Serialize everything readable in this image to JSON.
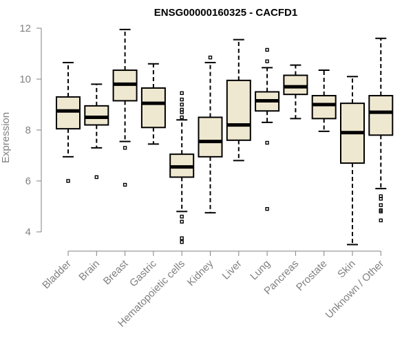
{
  "chart_data": {
    "type": "boxplot",
    "title": "ENSG00000160325 - CACFD1",
    "xlabel": "",
    "ylabel": "Expression",
    "ylim": [
      3.3,
      12.2
    ],
    "yticks": [
      4,
      6,
      8,
      10,
      12
    ],
    "box_fill": "#efe8d0",
    "outline_color": "#000000",
    "categories": [
      "Bladder",
      "Brain",
      "Breast",
      "Gastric",
      "Hematopoietic cells",
      "Kidney",
      "Liver",
      "Lung",
      "Pancreas",
      "Prostate",
      "Skin",
      "Unknown / Other"
    ],
    "boxes": [
      {
        "name": "Bladder",
        "whisker_low": 6.95,
        "q1": 8.05,
        "median": 8.75,
        "q3": 9.3,
        "whisker_high": 10.65,
        "outliers": [
          6.0
        ]
      },
      {
        "name": "Brain",
        "whisker_low": 7.3,
        "q1": 8.2,
        "median": 8.5,
        "q3": 8.95,
        "whisker_high": 9.8,
        "outliers": [
          6.15
        ]
      },
      {
        "name": "Breast",
        "whisker_low": 7.55,
        "q1": 9.15,
        "median": 9.8,
        "q3": 10.35,
        "whisker_high": 11.95,
        "outliers": [
          7.3,
          5.85
        ]
      },
      {
        "name": "Gastric",
        "whisker_low": 7.45,
        "q1": 8.1,
        "median": 9.05,
        "q3": 9.65,
        "whisker_high": 10.6,
        "outliers": []
      },
      {
        "name": "Hematopoietic cells",
        "whisker_low": 4.8,
        "q1": 6.15,
        "median": 6.55,
        "q3": 7.05,
        "whisker_high": 8.4,
        "outliers": [
          9.45,
          9.2,
          9.0,
          8.8,
          8.7,
          8.5,
          4.6,
          4.4,
          3.75,
          3.6
        ]
      },
      {
        "name": "Kidney",
        "whisker_low": 4.75,
        "q1": 6.95,
        "median": 7.55,
        "q3": 8.5,
        "whisker_high": 10.65,
        "outliers": [
          10.85
        ]
      },
      {
        "name": "Liver",
        "whisker_low": 6.8,
        "q1": 7.6,
        "median": 8.2,
        "q3": 9.95,
        "whisker_high": 11.55,
        "outliers": []
      },
      {
        "name": "Lung",
        "whisker_low": 8.3,
        "q1": 8.75,
        "median": 9.15,
        "q3": 9.5,
        "whisker_high": 10.45,
        "outliers": [
          11.15,
          10.7,
          7.5,
          4.9
        ]
      },
      {
        "name": "Pancreas",
        "whisker_low": 8.45,
        "q1": 9.4,
        "median": 9.7,
        "q3": 10.15,
        "whisker_high": 10.55,
        "outliers": []
      },
      {
        "name": "Prostate",
        "whisker_low": 7.95,
        "q1": 8.45,
        "median": 9.0,
        "q3": 9.35,
        "whisker_high": 10.35,
        "outliers": []
      },
      {
        "name": "Skin",
        "whisker_low": 3.5,
        "q1": 6.7,
        "median": 7.9,
        "q3": 9.05,
        "whisker_high": 10.1,
        "outliers": []
      },
      {
        "name": "Unknown / Other",
        "whisker_low": 5.7,
        "q1": 7.8,
        "median": 8.7,
        "q3": 9.35,
        "whisker_high": 11.6,
        "outliers": [
          5.4,
          5.3,
          5.05,
          4.85,
          4.8,
          4.45
        ]
      }
    ]
  }
}
